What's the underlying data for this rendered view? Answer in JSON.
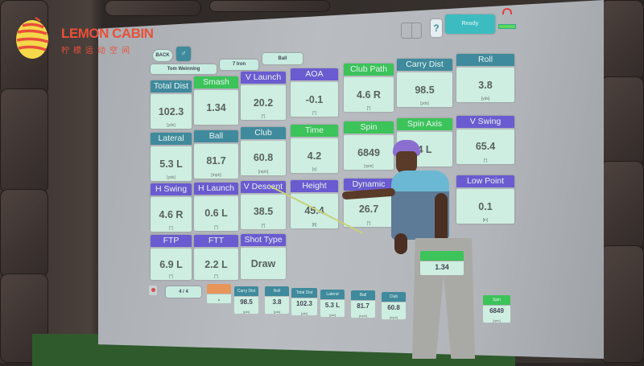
{
  "brand": {
    "name": "LEMON CABIN",
    "subtitle": "柠檬运动空间",
    "colors": {
      "red": "#e8503a",
      "yellow": "#f5d94a"
    }
  },
  "toolbar": {
    "back_label": "BACK",
    "player": "Tom Weinning",
    "club": "7 Iron",
    "mode": "Ball",
    "ready_label": "Ready",
    "help_label": "?",
    "icons": [
      "grid-icon",
      "help-icon",
      "wifi-icon",
      "battery-icon",
      "golfer-icon"
    ]
  },
  "colors": {
    "teal": "#3f8a9c",
    "green": "#3cc35a",
    "purple": "#6a5bd0",
    "tile": "#cdeee0",
    "orange": "#e8955a"
  },
  "tiles": [
    {
      "label": "Total Dist",
      "value": "102.3",
      "unit": "[yds]",
      "color": "teal"
    },
    {
      "label": "Smash",
      "value": "1.34",
      "unit": "",
      "color": "green"
    },
    {
      "label": "V Launch",
      "value": "20.2",
      "unit": "[°]",
      "color": "purple"
    },
    {
      "label": "AOA",
      "value": "-0.1",
      "unit": "[°]",
      "color": "purple"
    },
    {
      "label": "Club Path",
      "value": "4.6 R",
      "unit": "[°]",
      "color": "green"
    },
    {
      "label": "Carry Dist",
      "value": "98.5",
      "unit": "[yds]",
      "color": "teal"
    },
    {
      "label": "Roll",
      "value": "3.8",
      "unit": "[yds]",
      "color": "teal"
    },
    {
      "label": "Lateral",
      "value": "5.3 L",
      "unit": "[yds]",
      "color": "teal"
    },
    {
      "label": "Ball",
      "value": "81.7",
      "unit": "[mph]",
      "color": "teal"
    },
    {
      "label": "Club",
      "value": "60.8",
      "unit": "[mph]",
      "color": "teal"
    },
    {
      "label": "Time",
      "value": "4.2",
      "unit": "[s]",
      "color": "green"
    },
    {
      "label": "Spin",
      "value": "6849",
      "unit": "[rpm]",
      "color": "green"
    },
    {
      "label": "Spin Axis",
      "value": "4 L",
      "unit": "",
      "color": "green"
    },
    {
      "label": "V Swing",
      "value": "65.4",
      "unit": "[°]",
      "color": "purple"
    },
    {
      "label": "H Swing",
      "value": "4.6 R",
      "unit": "[°]",
      "color": "purple"
    },
    {
      "label": "H Launch",
      "value": "0.6 L",
      "unit": "[°]",
      "color": "purple"
    },
    {
      "label": "V Descent",
      "value": "38.5",
      "unit": "[°]",
      "color": "purple"
    },
    {
      "label": "Height",
      "value": "45.4",
      "unit": "[ft]",
      "color": "purple"
    },
    {
      "label": "Dynamic",
      "value": "26.7",
      "unit": "[°]",
      "color": "purple"
    },
    {
      "label": "Low Point",
      "value": "0.1",
      "unit": "[in]",
      "color": "purple"
    },
    {
      "label": "FTP",
      "value": "6.9 L",
      "unit": "[°]",
      "color": "purple"
    },
    {
      "label": "FTT",
      "value": "2.2 L",
      "unit": "[°]",
      "color": "purple"
    },
    {
      "label": "Shot Type",
      "value": "Draw",
      "unit": "",
      "color": "purple"
    }
  ],
  "bottom": {
    "page": "4 / 4",
    "first_value": "-",
    "minis": [
      {
        "label": "Carry Dist",
        "value": "98.5",
        "unit": "[yds]",
        "color": "teal"
      },
      {
        "label": "Roll",
        "value": "3.8",
        "unit": "[yds]",
        "color": "teal"
      },
      {
        "label": "Total Dist",
        "value": "102.3",
        "unit": "[yds]",
        "color": "teal"
      },
      {
        "label": "Lateral",
        "value": "5.3 L",
        "unit": "[yds]",
        "color": "teal"
      },
      {
        "label": "Ball",
        "value": "81.7",
        "unit": "[mph]",
        "color": "teal"
      },
      {
        "label": "Club",
        "value": "60.8",
        "unit": "[mph]",
        "color": "teal"
      },
      {
        "label": "Spin",
        "value": "6849",
        "unit": "[rpm]",
        "color": "green"
      }
    ],
    "shirt_tile_value": "1.34"
  }
}
